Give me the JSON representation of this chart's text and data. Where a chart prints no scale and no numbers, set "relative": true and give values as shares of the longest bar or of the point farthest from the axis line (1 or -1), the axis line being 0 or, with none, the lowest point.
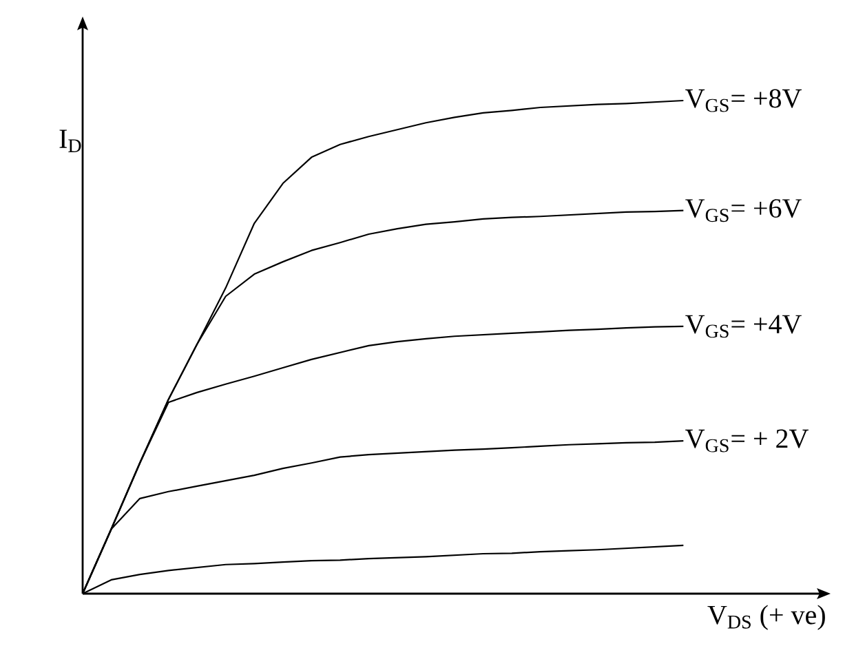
{
  "chart_data": {
    "type": "line",
    "relative": true,
    "xlabel": "V$_{DS}$  (+ ve)",
    "ylabel": "I$_{D}$",
    "legend": false,
    "marker": "none",
    "categories": [
      null,
      null,
      null,
      null,
      null,
      null,
      null,
      null,
      null,
      null,
      null,
      null,
      null,
      null,
      null,
      null,
      null,
      null,
      null,
      null,
      null,
      null,
      null,
      null,
      null,
      null,
      null
    ],
    "series": [
      {
        "name": "V$_{GS}$= +8V",
        "color": "#000000",
        "values": [
          0,
          0.131,
          0.265,
          0.394,
          0.506,
          0.62,
          0.751,
          0.832,
          0.885,
          0.911,
          0.927,
          0.941,
          0.955,
          0.966,
          0.975,
          0.98,
          0.986,
          0.989,
          0.992,
          0.994,
          0.997,
          1,
          null,
          null,
          null,
          null,
          null
        ]
      },
      {
        "name": "V$_{GS}$= +6V",
        "color": "#000000",
        "values": [
          0,
          0.131,
          0.265,
          0.394,
          0.506,
          0.603,
          0.648,
          0.673,
          0.696,
          0.712,
          0.729,
          0.74,
          0.749,
          0.754,
          0.76,
          0.763,
          0.765,
          0.768,
          0.771,
          0.774,
          0.775,
          0.777,
          null,
          null,
          null,
          null,
          null
        ]
      },
      {
        "name": "V$_{GS}$= +4V",
        "color": "#000000",
        "values": [
          0,
          0.131,
          0.265,
          0.388,
          0.408,
          0.425,
          0.441,
          0.458,
          0.475,
          0.489,
          0.503,
          0.511,
          0.517,
          0.522,
          0.525,
          0.528,
          0.531,
          0.534,
          0.536,
          0.539,
          0.541,
          0.542,
          null,
          null,
          null,
          null,
          null
        ]
      },
      {
        "name": "V$_{GS}$= + 2V",
        "color": "#000000",
        "values": [
          0,
          0.131,
          0.193,
          0.207,
          0.218,
          0.229,
          0.24,
          0.254,
          0.265,
          0.277,
          0.282,
          0.285,
          0.288,
          0.291,
          0.293,
          0.296,
          0.299,
          0.302,
          0.304,
          0.306,
          0.307,
          0.31,
          null,
          null,
          null,
          null,
          null
        ]
      },
      {
        "color": "#000000",
        "values": [
          0,
          0.028,
          0.039,
          0.047,
          0.053,
          0.059,
          0.061,
          0.064,
          0.067,
          0.068,
          0.071,
          0.073,
          0.075,
          0.078,
          0.081,
          0.082,
          0.085,
          0.087,
          0.089,
          0.092,
          0.095,
          0.098,
          null,
          null,
          null,
          null,
          null
        ]
      }
    ]
  }
}
